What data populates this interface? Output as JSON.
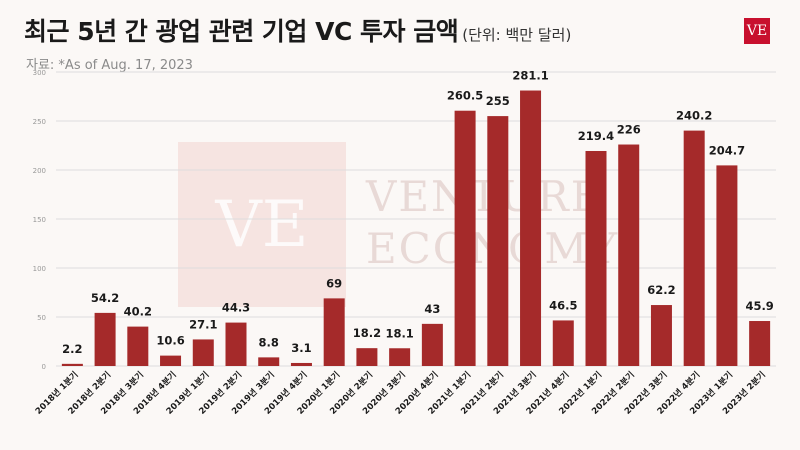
{
  "header": {
    "title": "최근 5년 간 광업 관련 기업 VC 투자 금액",
    "unit": "(단위: 백만 달러)",
    "source": "자료: *As of Aug. 17, 2023",
    "logo": "VE"
  },
  "watermark": {
    "glyph": "VE",
    "line1": "VENTURE",
    "line2": "ECONOMY"
  },
  "colors": {
    "bar": "#a52a2a",
    "grid": "#dddddd",
    "accent": "#c8102e"
  },
  "chart_data": {
    "type": "bar",
    "categories": [
      "2018년 1분기",
      "2018년 2분기",
      "2018년 3분기",
      "2018년 4분기",
      "2019년 1분기",
      "2019년 2분기",
      "2019년 3분기",
      "2019년 4분기",
      "2020년 1분기",
      "2020년 2분기",
      "2020년 3분기",
      "2020년 4분기",
      "2021년 1분기",
      "2021년 2분기",
      "2021년 3분기",
      "2021년 4분기",
      "2022년 1분기",
      "2022년 2분기",
      "2022년 3분기",
      "2022년 4분기",
      "2023년 1분기",
      "2023년 2분기"
    ],
    "values": [
      2.2,
      54.2,
      40.2,
      10.6,
      27.1,
      44.3,
      8.8,
      3.1,
      69,
      18.2,
      18.1,
      43,
      260.5,
      255,
      281.1,
      46.5,
      219.4,
      226,
      62.2,
      240.2,
      204.7,
      45.9
    ],
    "value_labels": [
      "2.2",
      "54.2",
      "40.2",
      "10.6",
      "27.1",
      "44.3",
      "8.8",
      "3.1",
      "69",
      "18.2",
      "18.1",
      "43",
      "260.5",
      "255",
      "281.1",
      "46.5",
      "219.4",
      "226",
      "62.2",
      "240.2",
      "204.7",
      "45.9"
    ],
    "yticks": [
      "0",
      "50",
      "100",
      "150",
      "200",
      "250",
      "300"
    ],
    "ytick_values": [
      0,
      50,
      100,
      150,
      200,
      250,
      300
    ],
    "ylim": [
      0,
      300
    ],
    "grid": true,
    "legend": "none"
  }
}
